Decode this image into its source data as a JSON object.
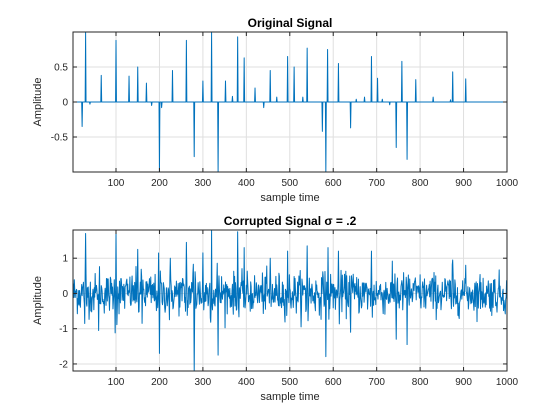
{
  "colors": {
    "series": "#0072bd",
    "axes": "#262626",
    "grid": "#dfdfdf",
    "background": "#ffffff"
  },
  "chart_data": [
    {
      "type": "line",
      "title": "Original Signal",
      "xlabel": "sample time",
      "ylabel": "Amplitude",
      "xlim": [
        1,
        1000
      ],
      "ylim": [
        -1,
        1
      ],
      "grid": true,
      "xticks": [
        100,
        200,
        300,
        400,
        500,
        600,
        700,
        800,
        900,
        1000
      ],
      "xtick_labels": [
        "100",
        "200",
        "300",
        "400",
        "500",
        "600",
        "700",
        "800",
        "900",
        "1000"
      ],
      "yticks": [
        -0.5,
        0,
        0.5
      ],
      "ytick_labels": [
        "-0.5",
        "0",
        "0.5"
      ],
      "series": [
        {
          "kind": "sparse_spikes",
          "length": 1000,
          "spikes": [
            [
              22,
              -0.35
            ],
            [
              30,
              1.0
            ],
            [
              40,
              -0.03
            ],
            [
              66,
              0.38
            ],
            [
              100,
              0.88
            ],
            [
              130,
              0.37
            ],
            [
              150,
              0.5
            ],
            [
              170,
              0.27
            ],
            [
              182,
              -0.05
            ],
            [
              200,
              -1.0
            ],
            [
              205,
              -0.08
            ],
            [
              230,
              0.45
            ],
            [
              262,
              0.88
            ],
            [
              280,
              -0.78
            ],
            [
              300,
              0.3
            ],
            [
              320,
              1.0
            ],
            [
              335,
              -1.0
            ],
            [
              352,
              0.3
            ],
            [
              368,
              0.08
            ],
            [
              380,
              0.93
            ],
            [
              395,
              0.63
            ],
            [
              420,
              0.2
            ],
            [
              440,
              -0.08
            ],
            [
              455,
              0.45
            ],
            [
              470,
              0.07
            ],
            [
              495,
              0.65
            ],
            [
              510,
              0.5
            ],
            [
              530,
              0.07
            ],
            [
              540,
              0.77
            ],
            [
              575,
              -0.42
            ],
            [
              583,
              -1.0
            ],
            [
              587,
              0.75
            ],
            [
              612,
              0.55
            ],
            [
              640,
              -0.37
            ],
            [
              653,
              0.04
            ],
            [
              672,
              0.07
            ],
            [
              688,
              0.65
            ],
            [
              702,
              0.34
            ],
            [
              713,
              0.04
            ],
            [
              730,
              -0.04
            ],
            [
              745,
              -0.65
            ],
            [
              758,
              0.58
            ],
            [
              770,
              -0.82
            ],
            [
              790,
              0.32
            ],
            [
              830,
              0.07
            ],
            [
              870,
              0.03
            ],
            [
              875,
              0.43
            ],
            [
              905,
              0.33
            ]
          ]
        }
      ]
    },
    {
      "type": "line",
      "title": "Corrupted Signal σ = .2",
      "xlabel": "sample time",
      "ylabel": "Amplitude",
      "xlim": [
        1,
        1000
      ],
      "ylim": [
        -2.2,
        1.8
      ],
      "grid": true,
      "xticks": [
        100,
        200,
        300,
        400,
        500,
        600,
        700,
        800,
        900,
        1000
      ],
      "xtick_labels": [
        "100",
        "200",
        "300",
        "400",
        "500",
        "600",
        "700",
        "800",
        "900",
        "1000"
      ],
      "yticks": [
        -2,
        -1,
        0,
        1
      ],
      "ytick_labels": [
        "-2",
        "-1",
        "0",
        "1"
      ],
      "series": [
        {
          "kind": "noisy_signal",
          "length": 1000,
          "noise_sigma": 0.2,
          "extremes": [
            [
              30,
              1.7
            ],
            [
              60,
              -1.05
            ],
            [
              100,
              1.75
            ],
            [
              150,
              1.25
            ],
            [
              160,
              -0.85
            ],
            [
              200,
              -1.7
            ],
            [
              225,
              1.0
            ],
            [
              262,
              1.45
            ],
            [
              280,
              -2.2
            ],
            [
              300,
              1.15
            ],
            [
              320,
              1.8
            ],
            [
              335,
              -1.75
            ],
            [
              380,
              1.75
            ],
            [
              395,
              1.3
            ],
            [
              455,
              1.0
            ],
            [
              495,
              1.2
            ],
            [
              540,
              1.35
            ],
            [
              583,
              -1.85
            ],
            [
              588,
              1.3
            ],
            [
              612,
              1.2
            ],
            [
              640,
              -1.1
            ],
            [
              688,
              1.2
            ],
            [
              745,
              -1.3
            ],
            [
              770,
              -1.45
            ],
            [
              875,
              0.95
            ],
            [
              905,
              0.8
            ]
          ]
        }
      ]
    }
  ]
}
